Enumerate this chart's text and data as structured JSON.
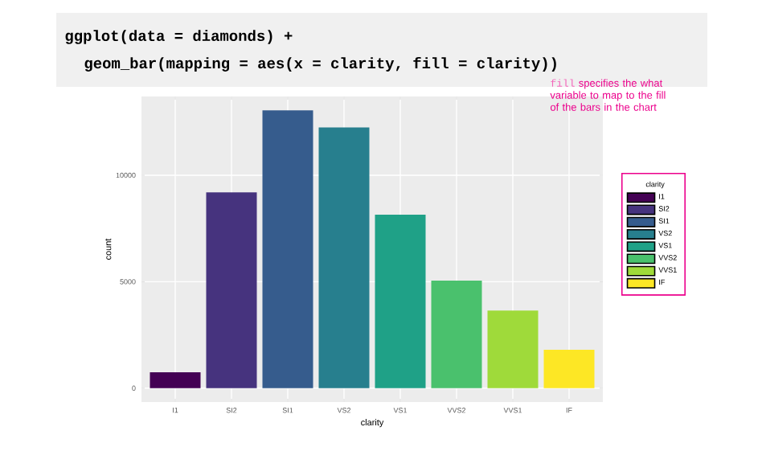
{
  "chart_data": {
    "type": "bar",
    "title": "ggplot(data = diamonds) +",
    "subtitle": "geom_bar(mapping = aes(x = clarity, fill = clarity))",
    "xlabel": "clarity",
    "ylabel": "count",
    "legend_title": "clarity",
    "annotations": [
      "fill",
      "specifies the what variable to map to the fill of the bars in the chart"
    ],
    "categories": [
      "I1",
      "SI2",
      "SI1",
      "VS2",
      "VS1",
      "VVS2",
      "VVS1",
      "IF"
    ],
    "series": [
      {
        "name": "I1",
        "color": "#440154",
        "values": [
          750,
          null,
          null,
          null,
          null,
          null,
          null,
          null
        ]
      },
      {
        "name": "SI2",
        "color": "#46337e",
        "values": [
          null,
          9200,
          null,
          null,
          null,
          null,
          null,
          null
        ]
      },
      {
        "name": "SI1",
        "color": "#365c8d",
        "values": [
          null,
          null,
          13050,
          null,
          null,
          null,
          null,
          null
        ]
      },
      {
        "name": "VS2",
        "color": "#277f8e",
        "values": [
          null,
          null,
          null,
          12250,
          null,
          null,
          null,
          null
        ]
      },
      {
        "name": "VS1",
        "color": "#1fa187",
        "values": [
          null,
          null,
          null,
          null,
          8150,
          null,
          null,
          null
        ]
      },
      {
        "name": "VVS2",
        "color": "#4ac16d",
        "values": [
          null,
          null,
          null,
          null,
          null,
          5050,
          null,
          null
        ]
      },
      {
        "name": "VVS1",
        "color": "#9fda3a",
        "values": [
          null,
          null,
          null,
          null,
          null,
          null,
          3650,
          null
        ]
      },
      {
        "name": "IF",
        "color": "#fde725",
        "values": [
          null,
          null,
          null,
          null,
          null,
          null,
          null,
          1800
        ]
      }
    ],
    "ylim": [
      -650,
      13700
    ],
    "yticks": [
      0,
      5000,
      10000
    ],
    "grid": true,
    "legend": "right"
  }
}
